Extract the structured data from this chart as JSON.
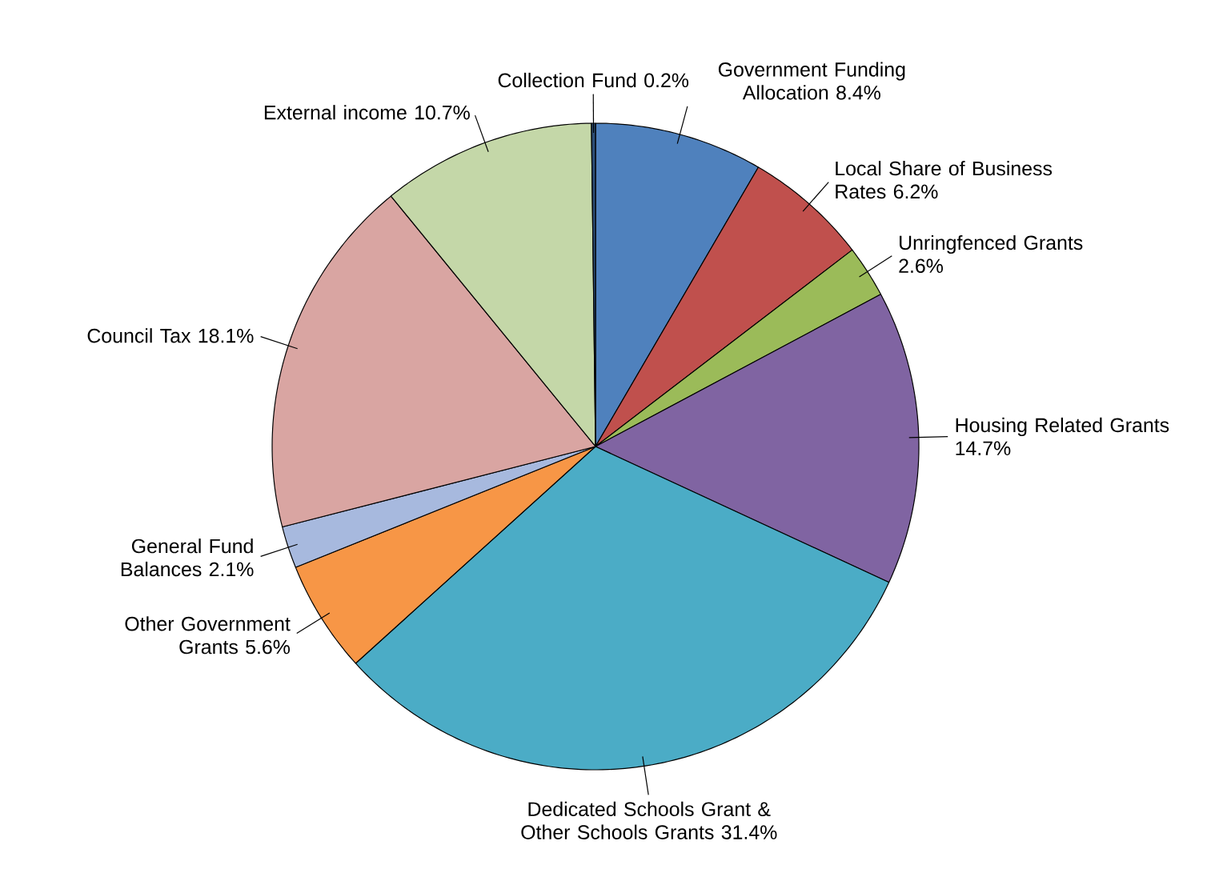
{
  "chart_data": {
    "type": "pie",
    "categories": [
      "Government Funding Allocation",
      "Local Share of Business Rates",
      "Unringfenced Grants",
      "Housing Related Grants",
      "Dedicated Schools Grant & Other Schools Grants",
      "Other Government Grants",
      "General Fund Balances",
      "Council Tax",
      "External income",
      "Collection Fund"
    ],
    "values": [
      8.4,
      6.2,
      2.6,
      14.7,
      31.4,
      5.6,
      2.1,
      18.1,
      10.7,
      0.2
    ],
    "value_labels": [
      "8.4%",
      "6.2%",
      "2.6%",
      "14.7%",
      "31.4%",
      "5.6%",
      "2.1%",
      "18.1%",
      "10.7%",
      "0.2%"
    ],
    "colors": [
      "#4f81bd",
      "#c0504d",
      "#9bbb59",
      "#8064a2",
      "#4bacc6",
      "#f79646",
      "#a7b9de",
      "#d9a5a2",
      "#c4d7a8",
      "#2c4d75"
    ]
  }
}
